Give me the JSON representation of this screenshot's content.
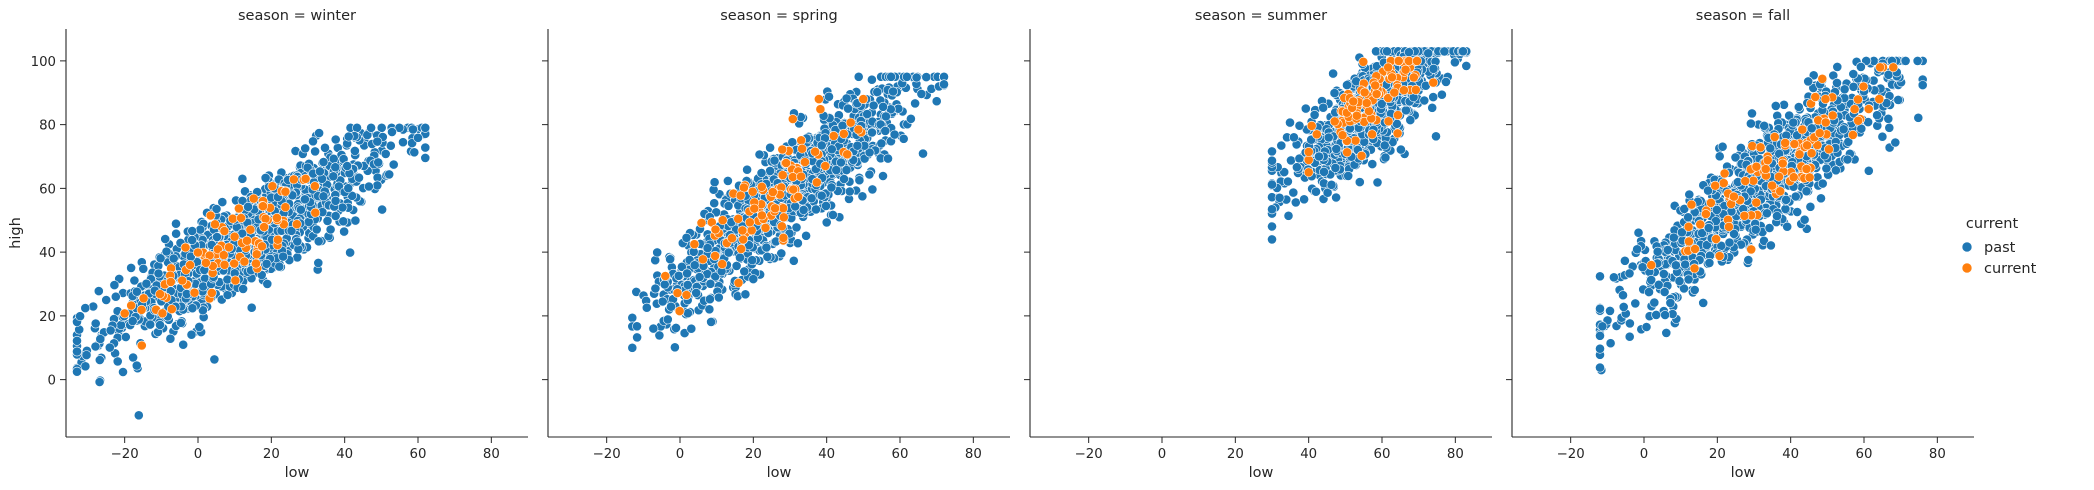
{
  "chart_data": {
    "type": "scatter",
    "facet_variable": "season",
    "facets": [
      {
        "title": "season = winter",
        "season": "winter",
        "series": [
          {
            "name": "past",
            "color": "#1f77b4",
            "x_range": [
              -33,
              62
            ],
            "y_range": [
              -12,
              79
            ],
            "trend": {
              "slope": 0.72,
              "intercept": 34
            },
            "spread": 8,
            "count": 1100
          },
          {
            "name": "current",
            "color": "#ff7f0e",
            "x_range": [
              -20,
              42
            ],
            "y_range": [
              5,
              63
            ],
            "trend": {
              "slope": 0.72,
              "intercept": 36
            },
            "spread": 6,
            "count": 90
          }
        ]
      },
      {
        "title": "season = spring",
        "season": "spring",
        "series": [
          {
            "name": "past",
            "color": "#1f77b4",
            "x_range": [
              -13,
              72
            ],
            "y_range": [
              10,
              95
            ],
            "trend": {
              "slope": 0.95,
              "intercept": 31
            },
            "spread": 8,
            "count": 1100
          },
          {
            "name": "current",
            "color": "#ff7f0e",
            "x_range": [
              -4,
              50
            ],
            "y_range": [
              20,
              88
            ],
            "trend": {
              "slope": 0.95,
              "intercept": 33
            },
            "spread": 7,
            "count": 90
          }
        ]
      },
      {
        "title": "season = summer",
        "season": "summer",
        "series": [
          {
            "name": "past",
            "color": "#1f77b4",
            "x_range": [
              30,
              83
            ],
            "y_range": [
              44,
              103
            ],
            "trend": {
              "slope": 0.9,
              "intercept": 33
            },
            "spread": 7,
            "count": 900
          },
          {
            "name": "current",
            "color": "#ff7f0e",
            "x_range": [
              40,
              74
            ],
            "y_range": [
              55,
              100
            ],
            "trend": {
              "slope": 0.9,
              "intercept": 37
            },
            "spread": 5,
            "count": 100
          }
        ]
      },
      {
        "title": "season = fall",
        "season": "fall",
        "series": [
          {
            "name": "past",
            "color": "#1f77b4",
            "x_range": [
              -12,
              76
            ],
            "y_range": [
              3,
              100
            ],
            "trend": {
              "slope": 0.95,
              "intercept": 31
            },
            "spread": 8,
            "count": 1100
          },
          {
            "name": "current",
            "color": "#ff7f0e",
            "x_range": [
              2,
              68
            ],
            "y_range": [
              20,
              98
            ],
            "trend": {
              "slope": 0.95,
              "intercept": 32
            },
            "spread": 7,
            "count": 100
          }
        ]
      }
    ],
    "xlabel": "low",
    "ylabel": "high",
    "xlim": [
      -36,
      90
    ],
    "ylim": [
      -18,
      110
    ],
    "xticks": [
      -20,
      0,
      20,
      40,
      60,
      80
    ],
    "yticks": [
      0,
      20,
      40,
      60,
      80,
      100
    ],
    "sharey": true,
    "grid": false,
    "legend": {
      "title": "current",
      "placement": "right",
      "entries": [
        {
          "label": "past",
          "color": "#1f77b4"
        },
        {
          "label": "current",
          "color": "#ff7f0e"
        }
      ]
    }
  }
}
